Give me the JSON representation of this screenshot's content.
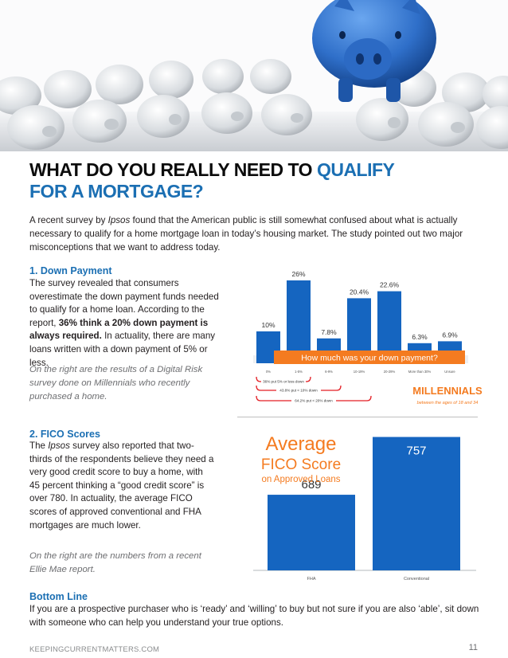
{
  "hero": {
    "image": "piggy-banks-photo",
    "colors": {
      "pig_white": "#d9dde1",
      "pig_blue": "#2f6fc9"
    }
  },
  "title": {
    "part1": "WHAT DO YOU REALLY NEED TO ",
    "part2": "QUALIFY",
    "part3": "FOR A MORTGAGE?"
  },
  "intro": {
    "before": "A recent survey by ",
    "brand": "Ipsos",
    "after": " found that the American public is still somewhat confused about what is actually necessary to qualify for a home mortgage loan in today’s housing market. The study pointed out two major misconceptions that we want to address today."
  },
  "section1": {
    "heading": "1. Down Payment",
    "text_before": "The survey revealed that consumers overestimate the down payment funds needed to qualify for a home loan. According to the report, ",
    "text_bold": "36% think a 20% down payment is always required.",
    "text_after": " In actuality, there are many loans written with a down payment of 5% or less.",
    "note": "On the right are the results of a Digital Risk survey done on Millennials who recently purchased a home."
  },
  "section2": {
    "heading": "2. FICO Scores",
    "text_before": "The ",
    "brand": "Ipsos",
    "text_after": " survey also reported that two-thirds of the respondents believe they need a very good credit score to buy a home, with 45 percent thinking a “good credit score” is over 780. In actuality, the average FICO scores of approved conventional and FHA mortgages are much lower.",
    "note": "On the right are the numbers from a recent Ellie Mae report."
  },
  "bottom_line": {
    "heading": "Bottom Line",
    "text": "If you are a prospective purchaser who is ‘ready’ and ‘willing’ to buy but not sure if you are also ‘able’, sit down with someone who can help you understand your true options."
  },
  "footer": {
    "site": "KEEPINGCURRENTMATTERS.COM",
    "page": "11"
  },
  "chart_data": [
    {
      "type": "bar",
      "title": "How much was your down payment?",
      "categories": [
        "0%",
        "1-5%",
        "6-9%",
        "10-19%",
        "20-29%",
        "More than 30%",
        "Unsure"
      ],
      "values": [
        10,
        26,
        7.8,
        20.4,
        22.6,
        6.3,
        6.9
      ],
      "value_labels": [
        "10%",
        "26%",
        "7.8%",
        "20.4%",
        "22.6%",
        "6.3%",
        "6.9%"
      ],
      "ylim": [
        0,
        30
      ],
      "bar_color": "#1565c0",
      "banner_color": "#f47b20",
      "brackets": [
        "36% put 5% or less down",
        "43.8% put < 10% down",
        "64.2% put < 20% down"
      ],
      "bracket_color": "#e31e24",
      "caption": "MILLENNIALS",
      "caption_sub": "between the ages of 18 and 34"
    },
    {
      "type": "bar",
      "title_line1": "Average",
      "title_line2": "FICO Score",
      "title_line3": "on Approved Loans",
      "title_color": "#f47b20",
      "categories": [
        "FHA",
        "Conventional"
      ],
      "values": [
        689,
        757
      ],
      "value_labels": [
        "689",
        "757"
      ],
      "ylim": [
        600,
        765
      ],
      "bar_color": "#1565c0"
    }
  ]
}
